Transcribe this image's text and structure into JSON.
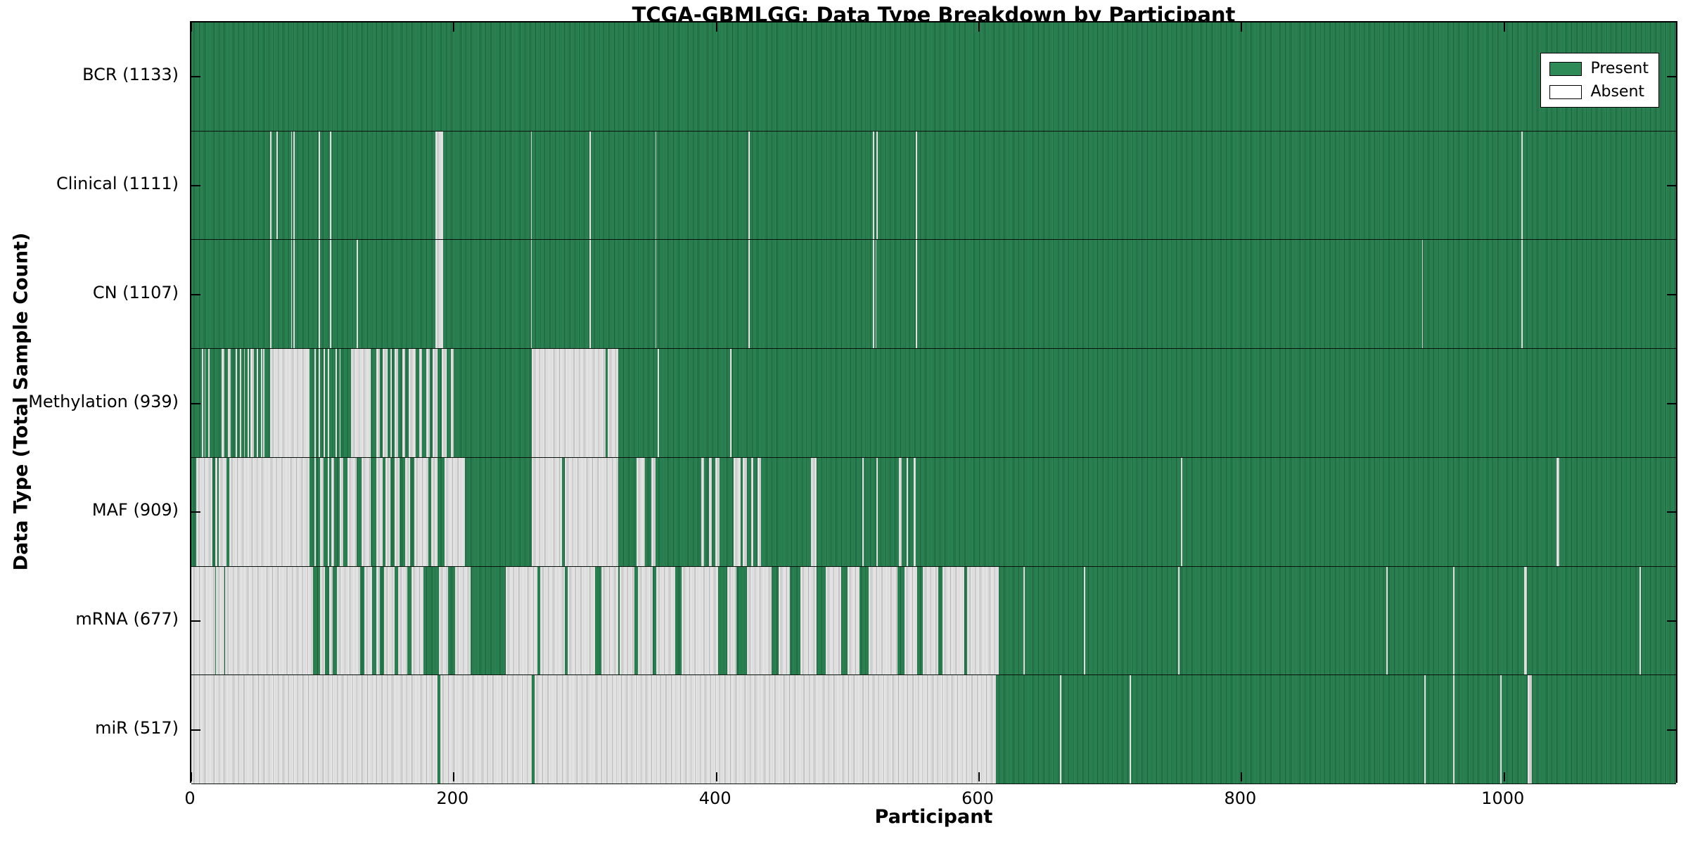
{
  "chart_data": {
    "type": "heatmap",
    "title": "TCGA-GBMLGG: Data Type Breakdown by Participant",
    "xlabel": "Participant",
    "ylabel": "Data Type (Total Sample Count)",
    "x_max": 1133,
    "x_ticks": [
      0,
      200,
      400,
      600,
      800,
      1000
    ],
    "x_tick_labels": [
      "0",
      "200",
      "400",
      "600",
      "800",
      "1000"
    ],
    "grid": "row-separators",
    "legend": {
      "position": "upper-right",
      "entries": [
        {
          "label": "Present",
          "color": "#2e8b57"
        },
        {
          "label": "Absent",
          "color": "#ffffff"
        }
      ]
    },
    "colors": {
      "present": "#2e8b57",
      "absent": "#f2f2f2",
      "cell_edge": "#000000",
      "border": "#000000",
      "background": "#ffffff"
    },
    "rows": [
      {
        "name": "BCR",
        "label": "BCR (1133)",
        "count": 1133,
        "absent_ranges": []
      },
      {
        "name": "Clinical",
        "label": "Clinical (1111)",
        "count": 1111,
        "absent_ranges": [
          [
            60,
            61
          ],
          [
            65,
            66
          ],
          [
            76,
            77
          ],
          [
            78,
            79
          ],
          [
            97,
            98
          ],
          [
            106,
            107
          ],
          [
            186,
            192
          ],
          [
            259,
            260
          ],
          [
            304,
            305
          ],
          [
            354,
            355
          ],
          [
            425,
            426
          ],
          [
            520,
            521
          ],
          [
            523,
            524
          ],
          [
            553,
            554
          ],
          [
            1015,
            1016
          ]
        ]
      },
      {
        "name": "CN",
        "label": "CN (1107)",
        "count": 1107,
        "absent_ranges": [
          [
            60,
            61
          ],
          [
            76,
            77
          ],
          [
            78,
            79
          ],
          [
            97,
            98
          ],
          [
            106,
            107
          ],
          [
            126,
            127
          ],
          [
            186,
            192
          ],
          [
            259,
            260
          ],
          [
            304,
            305
          ],
          [
            354,
            355
          ],
          [
            425,
            426
          ],
          [
            520,
            521
          ],
          [
            522,
            523
          ],
          [
            553,
            554
          ],
          [
            939,
            940
          ],
          [
            1015,
            1016
          ]
        ]
      },
      {
        "name": "Methylation",
        "label": "Methylation (939)",
        "count": 939,
        "absent_ranges": [
          [
            8,
            9
          ],
          [
            10,
            11
          ],
          [
            13,
            14
          ],
          [
            23,
            25
          ],
          [
            28,
            30
          ],
          [
            34,
            35
          ],
          [
            37,
            38
          ],
          [
            40,
            41
          ],
          [
            43,
            44
          ],
          [
            45,
            48
          ],
          [
            50,
            51
          ],
          [
            53,
            54
          ],
          [
            55,
            56
          ],
          [
            60,
            90
          ],
          [
            94,
            95
          ],
          [
            97,
            98
          ],
          [
            101,
            102
          ],
          [
            104,
            105
          ],
          [
            110,
            111
          ],
          [
            113,
            114
          ],
          [
            122,
            137
          ],
          [
            141,
            144
          ],
          [
            146,
            150
          ],
          [
            152,
            153
          ],
          [
            155,
            158
          ],
          [
            161,
            163
          ],
          [
            166,
            171
          ],
          [
            174,
            176
          ],
          [
            179,
            182
          ],
          [
            184,
            188
          ],
          [
            191,
            195
          ],
          [
            198,
            200
          ],
          [
            260,
            316
          ],
          [
            318,
            326
          ],
          [
            356,
            357
          ],
          [
            411,
            412
          ]
        ]
      },
      {
        "name": "MAF",
        "label": "MAF (909)",
        "count": 909,
        "absent_ranges": [
          [
            4,
            16
          ],
          [
            18,
            20
          ],
          [
            21,
            27
          ],
          [
            29,
            90
          ],
          [
            94,
            95
          ],
          [
            98,
            101
          ],
          [
            104,
            105
          ],
          [
            107,
            109
          ],
          [
            113,
            116
          ],
          [
            119,
            126
          ],
          [
            130,
            137
          ],
          [
            141,
            146
          ],
          [
            148,
            152
          ],
          [
            155,
            159
          ],
          [
            163,
            167
          ],
          [
            170,
            181
          ],
          [
            183,
            188
          ],
          [
            193,
            209
          ],
          [
            260,
            283
          ],
          [
            285,
            326
          ],
          [
            340,
            346
          ],
          [
            351,
            354
          ],
          [
            389,
            391
          ],
          [
            395,
            397
          ],
          [
            400,
            403
          ],
          [
            414,
            419
          ],
          [
            421,
            424
          ],
          [
            427,
            429
          ],
          [
            432,
            435
          ],
          [
            473,
            477
          ],
          [
            512,
            513
          ],
          [
            523,
            524
          ],
          [
            540,
            542
          ],
          [
            546,
            547
          ],
          [
            551,
            553
          ],
          [
            755,
            756
          ],
          [
            1042,
            1044
          ]
        ]
      },
      {
        "name": "mRNA",
        "label": "mRNA (677)",
        "count": 677,
        "absent_ranges": [
          [
            0,
            18
          ],
          [
            19,
            25
          ],
          [
            26,
            93
          ],
          [
            98,
            102
          ],
          [
            105,
            108
          ],
          [
            111,
            129
          ],
          [
            132,
            138
          ],
          [
            141,
            144
          ],
          [
            147,
            155
          ],
          [
            158,
            165
          ],
          [
            168,
            177
          ],
          [
            189,
            196
          ],
          [
            201,
            213
          ],
          [
            240,
            264
          ],
          [
            266,
            285
          ],
          [
            287,
            308
          ],
          [
            313,
            326
          ],
          [
            327,
            338
          ],
          [
            341,
            352
          ],
          [
            355,
            369
          ],
          [
            374,
            402
          ],
          [
            409,
            416
          ],
          [
            424,
            443
          ],
          [
            448,
            457
          ],
          [
            465,
            477
          ],
          [
            484,
            496
          ],
          [
            501,
            510
          ],
          [
            517,
            539
          ],
          [
            544,
            554
          ],
          [
            558,
            570
          ],
          [
            573,
            590
          ],
          [
            592,
            616
          ],
          [
            635,
            636
          ],
          [
            681,
            682
          ],
          [
            753,
            754
          ],
          [
            912,
            913
          ],
          [
            963,
            964
          ],
          [
            1017,
            1019
          ],
          [
            1105,
            1106
          ]
        ]
      },
      {
        "name": "miR",
        "label": "miR (517)",
        "count": 517,
        "absent_ranges": [
          [
            0,
            188
          ],
          [
            190,
            260
          ],
          [
            262,
            614
          ],
          [
            663,
            664
          ],
          [
            716,
            717
          ],
          [
            941,
            942
          ],
          [
            963,
            964
          ],
          [
            999,
            1000
          ],
          [
            1020,
            1023
          ]
        ]
      }
    ]
  }
}
